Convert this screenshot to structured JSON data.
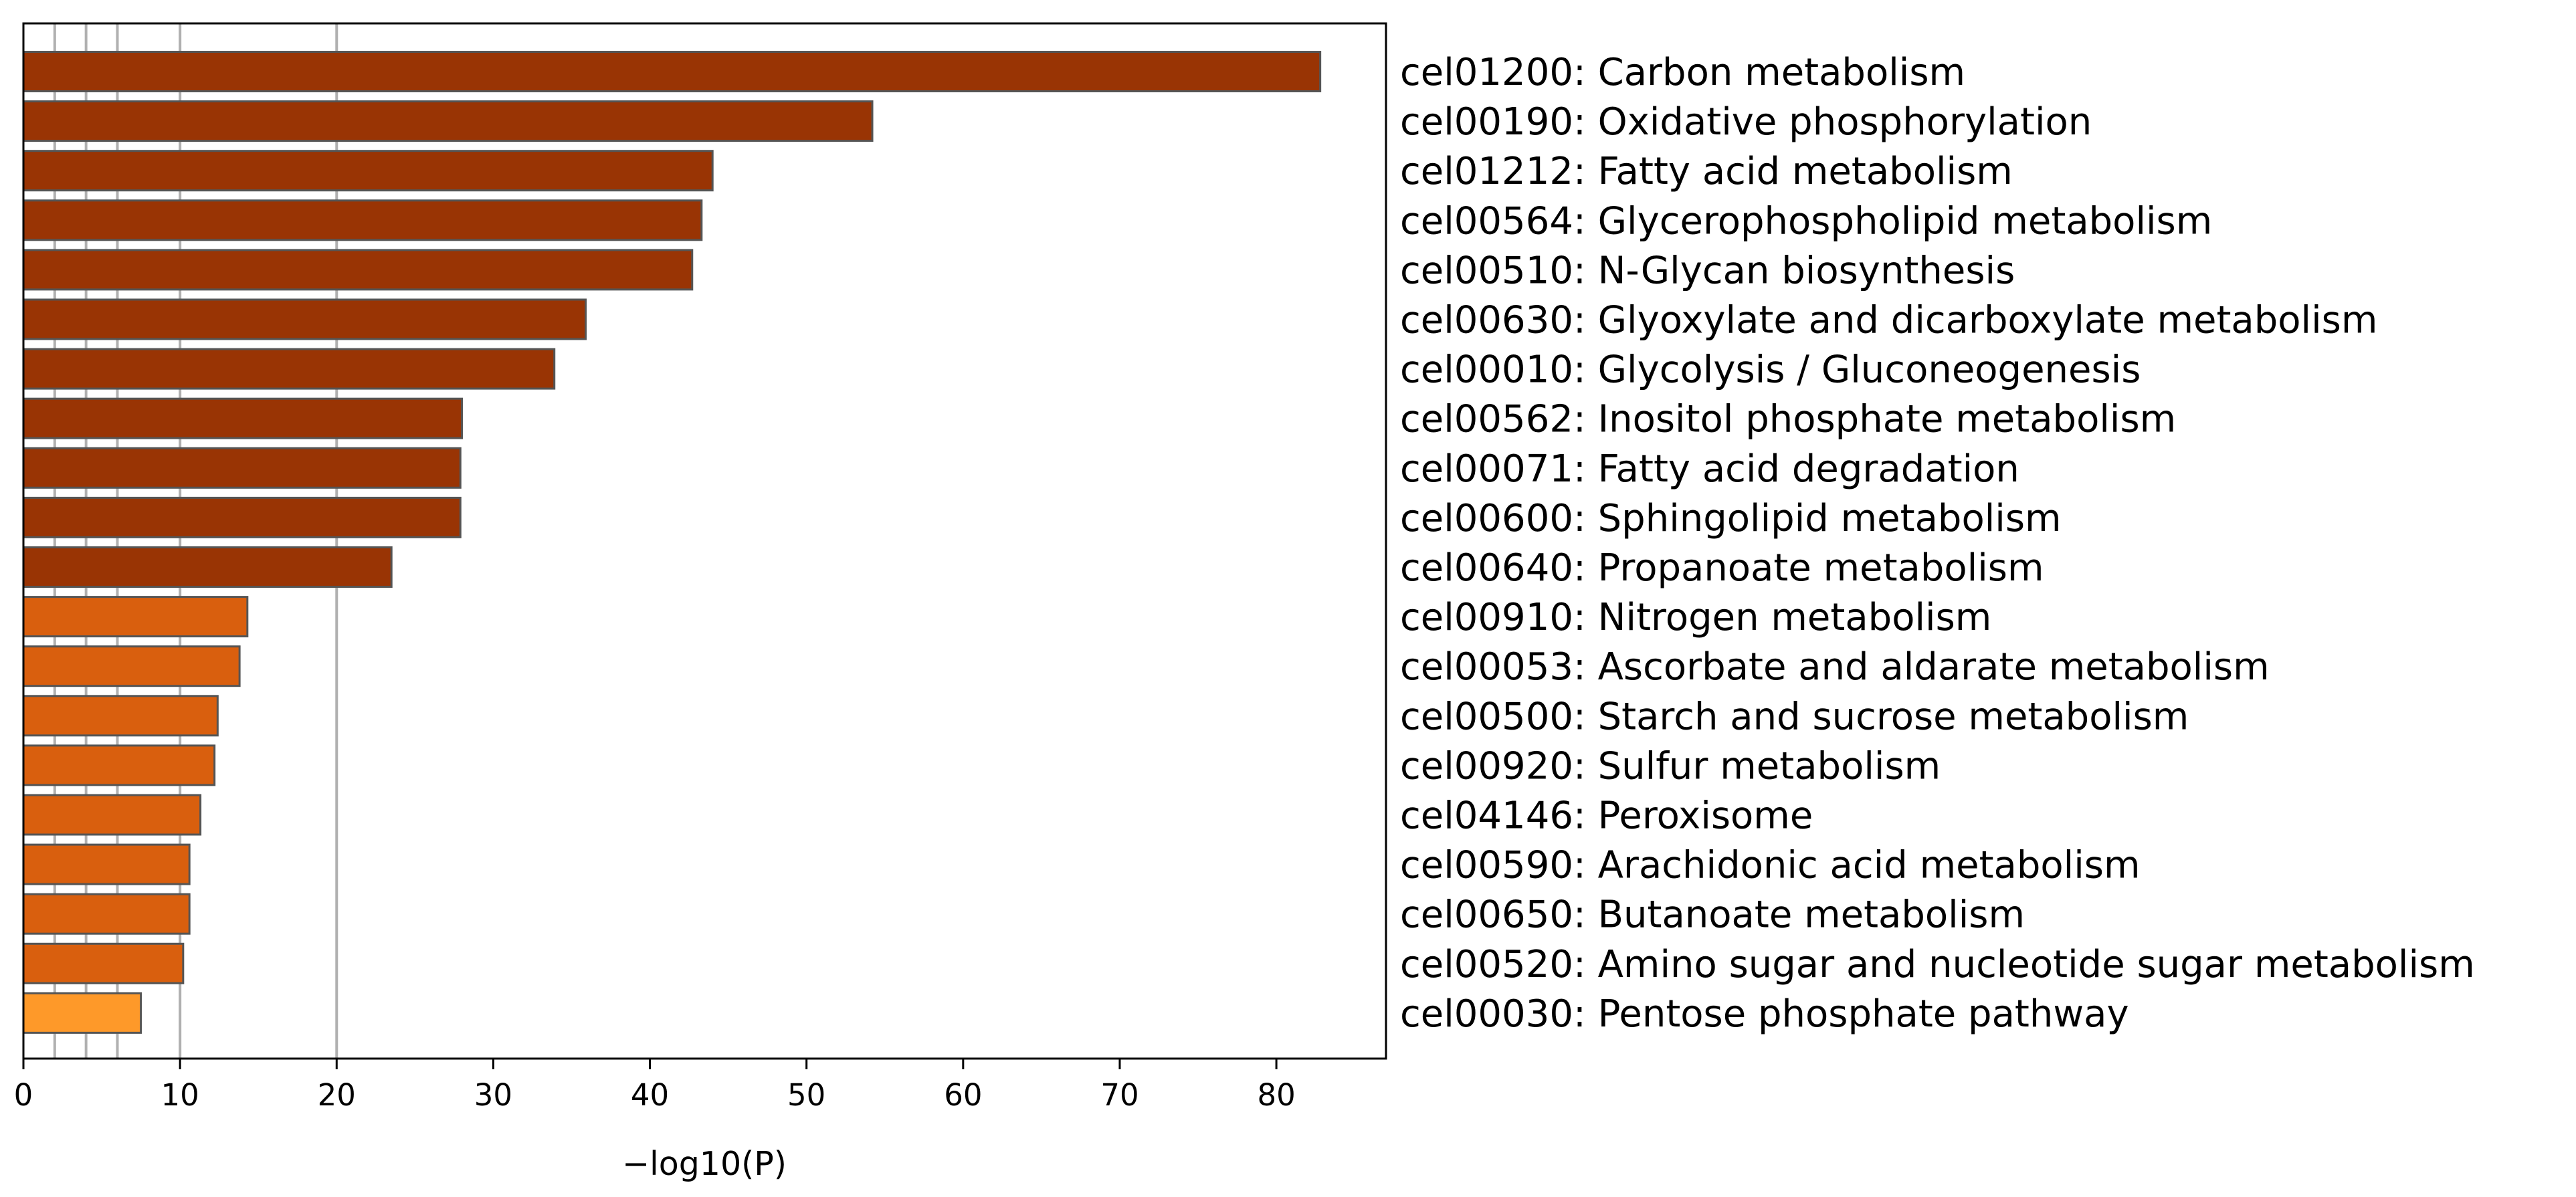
{
  "chart_data": {
    "type": "bar",
    "orientation": "horizontal",
    "xlabel": "−log10(P)",
    "ylabel": "",
    "title": "",
    "xlim": [
      0,
      87
    ],
    "xticks": [
      0,
      10,
      20,
      30,
      40,
      50,
      60,
      70,
      80
    ],
    "xtick_labels": [
      "0",
      "10",
      "20",
      "30",
      "40",
      "50",
      "60",
      "70",
      "80"
    ],
    "vertical_gridlines": [
      2,
      4,
      6,
      10,
      20
    ],
    "grid": true,
    "categories": [
      "cel01200: Carbon metabolism",
      "cel00190: Oxidative phosphorylation",
      "cel01212: Fatty acid metabolism",
      "cel00564: Glycerophospholipid metabolism",
      "cel00510: N-Glycan biosynthesis",
      "cel00630: Glyoxylate and dicarboxylate metabolism",
      "cel00010: Glycolysis / Gluconeogenesis",
      "cel00562: Inositol phosphate metabolism",
      "cel00071: Fatty acid degradation",
      "cel00600: Sphingolipid metabolism",
      "cel00640: Propanoate metabolism",
      "cel00910: Nitrogen metabolism",
      "cel00053: Ascorbate and aldarate metabolism",
      "cel00500: Starch and sucrose metabolism",
      "cel00920: Sulfur metabolism",
      "cel04146: Peroxisome",
      "cel00590: Arachidonic acid metabolism",
      "cel00650: Butanoate metabolism",
      "cel00520: Amino sugar and nucleotide sugar metabolism",
      "cel00030: Pentose phosphate pathway"
    ],
    "values": [
      82.8,
      54.2,
      44.0,
      43.3,
      42.7,
      35.9,
      33.9,
      28.0,
      27.9,
      27.9,
      23.5,
      14.3,
      13.8,
      12.4,
      12.2,
      11.3,
      10.6,
      10.6,
      10.2,
      7.5
    ],
    "bar_colors": [
      "#993404",
      "#993404",
      "#993404",
      "#993404",
      "#993404",
      "#993404",
      "#993404",
      "#993404",
      "#993404",
      "#993404",
      "#993404",
      "#d95f0e",
      "#d95f0e",
      "#d95f0e",
      "#d95f0e",
      "#d95f0e",
      "#d95f0e",
      "#d95f0e",
      "#d95f0e",
      "#fe9929"
    ],
    "bar_edge_color": "#555555",
    "grid_color": "#b0b0b0"
  }
}
